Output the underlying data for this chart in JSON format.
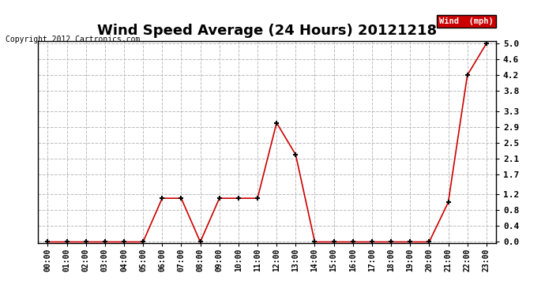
{
  "title": "Wind Speed Average (24 Hours) 20121218",
  "copyright": "Copyright 2012 Cartronics.com",
  "legend_label": "Wind  (mph)",
  "x_labels": [
    "00:00",
    "01:00",
    "02:00",
    "03:00",
    "04:00",
    "05:00",
    "06:00",
    "07:00",
    "08:00",
    "09:00",
    "10:00",
    "11:00",
    "12:00",
    "13:00",
    "14:00",
    "15:00",
    "16:00",
    "17:00",
    "18:00",
    "19:00",
    "20:00",
    "21:00",
    "22:00",
    "23:00"
  ],
  "y_values": [
    0.0,
    0.0,
    0.0,
    0.0,
    0.0,
    0.0,
    1.1,
    1.1,
    0.0,
    1.1,
    1.1,
    1.1,
    3.0,
    2.2,
    0.0,
    0.0,
    0.0,
    0.0,
    0.0,
    0.0,
    0.0,
    1.0,
    4.2,
    5.0
  ],
  "y_ticks": [
    0.0,
    0.4,
    0.8,
    1.2,
    1.7,
    2.1,
    2.5,
    2.9,
    3.3,
    3.8,
    4.2,
    4.6,
    5.0
  ],
  "ylim": [
    0.0,
    5.0
  ],
  "line_color": "#cc0000",
  "marker_color": "#000000",
  "bg_color": "#ffffff",
  "grid_color": "#bbbbbb",
  "title_fontsize": 13,
  "copyright_fontsize": 7,
  "legend_bg": "#cc0000",
  "legend_text_color": "#ffffff",
  "fig_width": 6.9,
  "fig_height": 3.75,
  "dpi": 100
}
